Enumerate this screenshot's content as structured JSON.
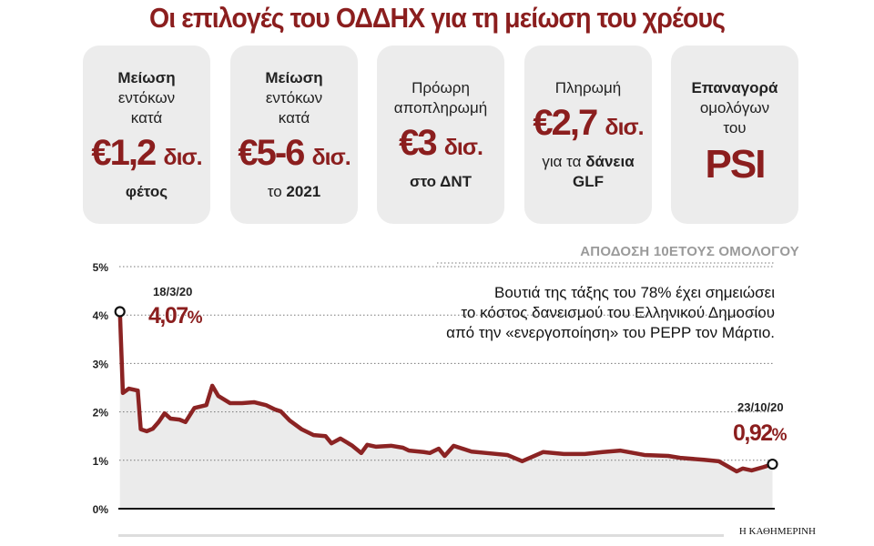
{
  "title": "Οι επιλογές του ΟΔΔΗΧ για τη μείωση του χρέους",
  "cards": [
    {
      "lines": [
        "Μείωση",
        "εντόκων",
        "κατά"
      ],
      "amount": "€1,2",
      "unit": "δισ.",
      "footer_pre": "",
      "footer_bold": "φέτος"
    },
    {
      "lines": [
        "Μείωση",
        "εντόκων",
        "κατά"
      ],
      "amount": "€5-6",
      "unit": "δισ.",
      "footer_pre": "το ",
      "footer_bold": "2021"
    },
    {
      "lines": [
        "Πρόωρη",
        "αποπληρωμή"
      ],
      "amount": "€3",
      "unit": "δισ.",
      "footer_pre": "",
      "footer_bold": "στο ΔΝΤ"
    },
    {
      "lines": [
        "Πληρωμή"
      ],
      "amount": "€2,7",
      "unit": "δισ.",
      "footer_pre": "για τα ",
      "footer_bold": "δάνεια",
      "footer_line2": "GLF"
    },
    {
      "lines": [
        "Επαναγορά",
        "ομολόγων",
        "του"
      ],
      "amount": "PSI"
    }
  ],
  "note": [
    "Βουτιά της τάξης του 78% έχει σημειώσει",
    "το κόστος δανεισμού του Ελληνικού Δημοσίου",
    "από την «ενεργοποίηση» του PEPP τον Μάρτιο."
  ],
  "credit": "Η ΚΑΘΗΜΕΡΙΝΗ",
  "colors": {
    "accent": "#8b1e1e",
    "line": "#8b2323",
    "fill": "#ebebeb",
    "card": "#ececec"
  },
  "chart_data": {
    "type": "area",
    "title": "ΑΠΟΔΟΣΗ 10ΕΤΟΥΣ ΟΜΟΛΟΓΟΥ",
    "ylim": [
      0,
      5
    ],
    "yticks": [
      "0%",
      "1%",
      "2%",
      "3%",
      "4%",
      "5%"
    ],
    "grid": true,
    "xlim": [
      "2020-03-18",
      "2020-10-23"
    ],
    "series": [
      {
        "x": [
          "2020-03-18",
          "2020-03-19",
          "2020-03-21",
          "2020-03-24",
          "2020-03-25",
          "2020-03-27",
          "2020-03-29",
          "2020-03-31",
          "2020-04-02",
          "2020-04-04",
          "2020-04-07",
          "2020-04-09",
          "2020-04-12",
          "2020-04-16",
          "2020-04-18",
          "2020-04-20",
          "2020-04-24",
          "2020-04-28",
          "2020-05-02",
          "2020-05-06",
          "2020-05-09",
          "2020-05-11",
          "2020-05-14",
          "2020-05-18",
          "2020-05-22",
          "2020-05-26",
          "2020-05-28",
          "2020-05-31",
          "2020-06-04",
          "2020-06-07",
          "2020-06-09",
          "2020-06-12",
          "2020-06-17",
          "2020-06-21",
          "2020-06-23",
          "2020-06-28",
          "2020-06-30",
          "2020-07-03",
          "2020-07-05",
          "2020-07-08",
          "2020-07-14",
          "2020-07-19",
          "2020-07-26",
          "2020-07-31",
          "2020-08-07",
          "2020-08-14",
          "2020-08-21",
          "2020-08-27",
          "2020-09-02",
          "2020-09-10",
          "2020-09-18",
          "2020-09-22",
          "2020-09-30",
          "2020-10-05",
          "2020-10-11",
          "2020-10-13",
          "2020-10-16",
          "2020-10-20",
          "2020-10-23"
        ],
        "y": [
          4.07,
          2.39,
          2.48,
          2.44,
          1.64,
          1.6,
          1.65,
          1.79,
          1.97,
          1.86,
          1.84,
          1.79,
          2.08,
          2.14,
          2.54,
          2.33,
          2.18,
          2.18,
          2.2,
          2.14,
          2.05,
          2.01,
          1.82,
          1.64,
          1.52,
          1.5,
          1.35,
          1.45,
          1.3,
          1.15,
          1.32,
          1.28,
          1.3,
          1.26,
          1.2,
          1.17,
          1.15,
          1.24,
          1.09,
          1.3,
          1.18,
          1.15,
          1.11,
          0.98,
          1.17,
          1.13,
          1.13,
          1.17,
          1.2,
          1.11,
          1.09,
          1.05,
          1.01,
          0.98,
          0.77,
          0.83,
          0.79,
          0.86,
          0.92
        ]
      }
    ],
    "annotations": [
      {
        "date": "18/3/20",
        "value": "4,07",
        "unit": "%"
      },
      {
        "date": "23/10/20",
        "value": "0,92",
        "unit": "%"
      }
    ]
  }
}
